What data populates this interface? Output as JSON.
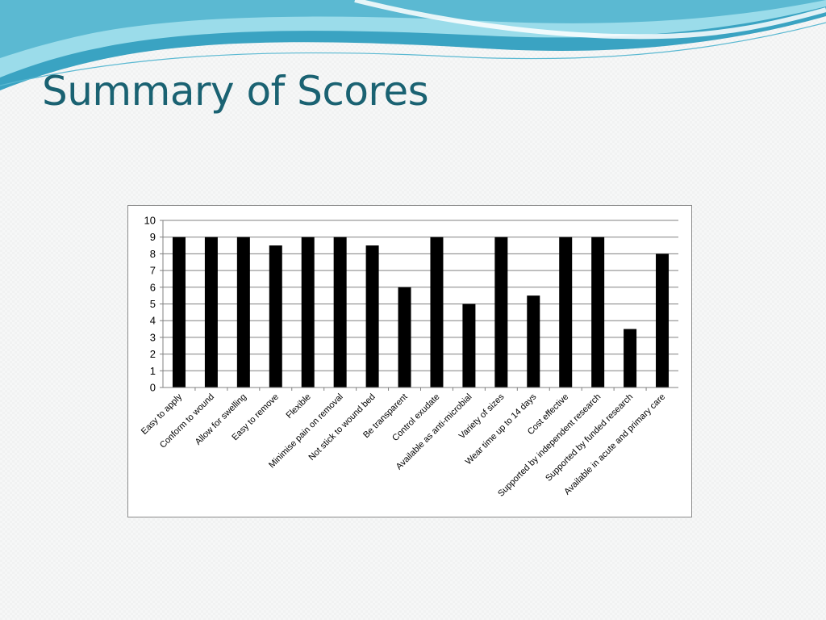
{
  "slide": {
    "title": "Summary of Scores"
  },
  "colors": {
    "title": "#1a6272",
    "bar": "#000000",
    "gridline": "#808080",
    "wave_dark": "#2e9ab8",
    "wave_light": "#8fd7e6"
  },
  "chart_data": {
    "type": "bar",
    "categories": [
      "Easy to apply",
      "Conform to wound",
      "Allow for swelling",
      "Easy to remove",
      "Flexible",
      "Minimise pain on removal",
      "Not stick to wound bed",
      "Be transparent",
      "Control exudate",
      "Available as anti-microbial",
      "Variety of sizes",
      "Wear time up to 14 days",
      "Cost effective",
      "Supported by independent research",
      "Supported by funded research",
      "Available in acute and primary care"
    ],
    "values": [
      9,
      9,
      9,
      8.5,
      9,
      9,
      8.5,
      6,
      9,
      5,
      9,
      5.5,
      9,
      9,
      3.5,
      8
    ],
    "ylim": [
      0,
      10
    ],
    "yticks": [
      0,
      1,
      2,
      3,
      4,
      5,
      6,
      7,
      8,
      9,
      10
    ],
    "grid": true,
    "legend": "none",
    "xlabel": "",
    "ylabel": ""
  }
}
